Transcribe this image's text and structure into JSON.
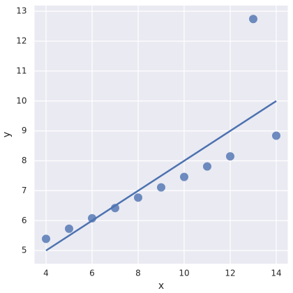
{
  "chart_data": {
    "type": "scatter",
    "xlabel": "x",
    "ylabel": "y",
    "x": [
      10,
      8,
      13,
      9,
      11,
      14,
      6,
      4,
      12,
      7,
      5
    ],
    "values": [
      7.46,
      6.77,
      12.74,
      7.11,
      7.81,
      8.84,
      6.08,
      5.39,
      8.15,
      6.42,
      5.73
    ],
    "color": "#4c72b0",
    "fit": {
      "x": [
        4,
        14
      ],
      "values": [
        5,
        10
      ],
      "color": "#4c72b0"
    },
    "xlim": [
      3.5,
      14.5
    ],
    "xticks": [
      4,
      6,
      8,
      10,
      12,
      14
    ],
    "ylim": [
      4.56,
      13.19
    ],
    "yticks": [
      5,
      6,
      7,
      8,
      9,
      10,
      11,
      12,
      13
    ],
    "grid": true
  }
}
